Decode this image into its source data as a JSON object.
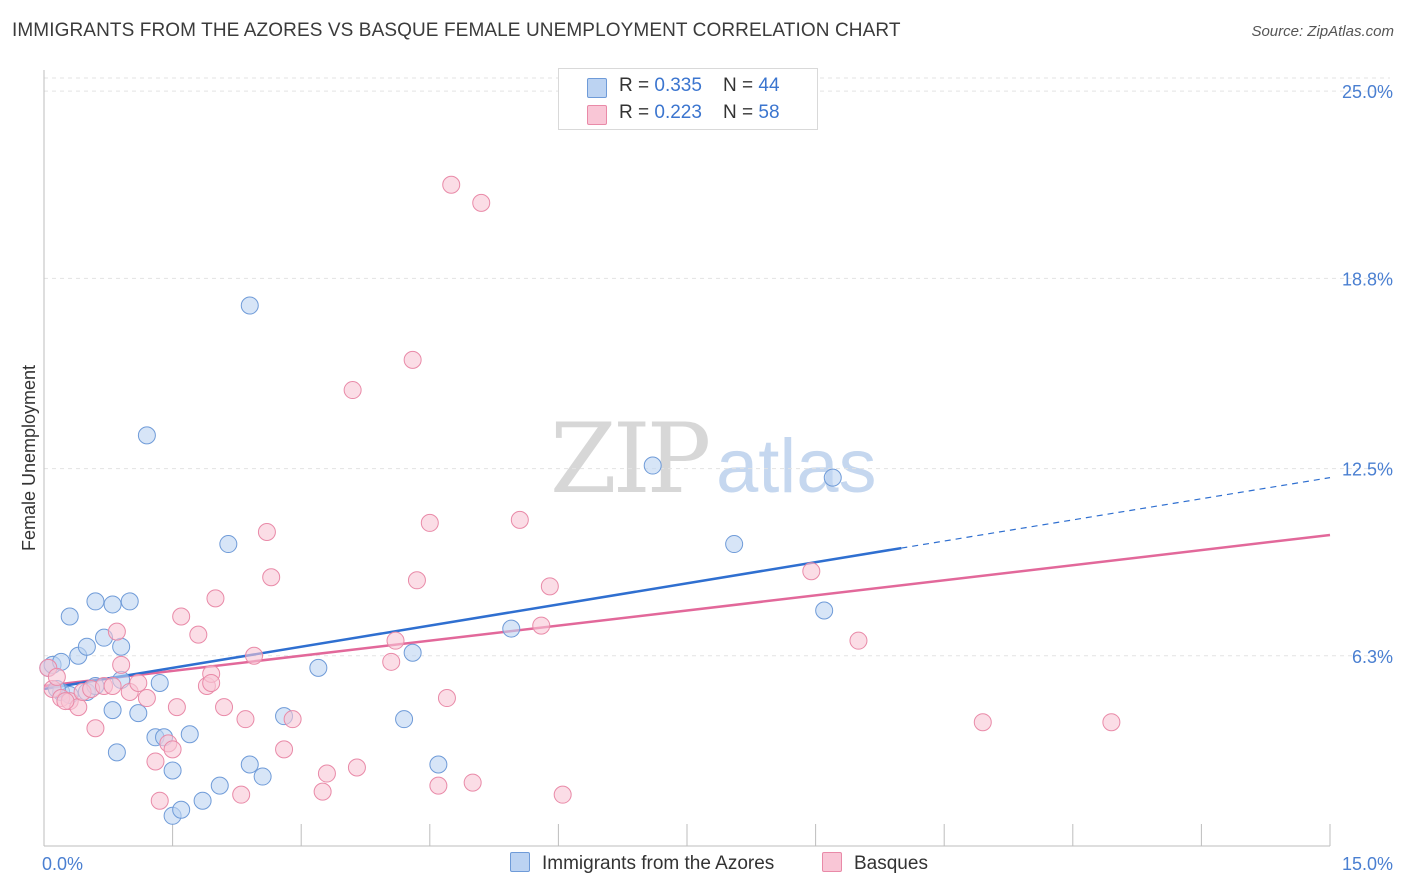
{
  "title": "IMMIGRANTS FROM THE AZORES VS BASQUE FEMALE UNEMPLOYMENT CORRELATION CHART",
  "source": "Source: ZipAtlas.com",
  "watermark": {
    "zip": "ZIP",
    "atlas": "atlas"
  },
  "colors": {
    "blue_fill": "#bcd3f2",
    "blue_stroke": "#6f9bd8",
    "blue_line": "#2f6fd0",
    "pink_fill": "#f9c6d6",
    "pink_stroke": "#e98aa8",
    "pink_line": "#e2689a",
    "grid": "#e3e3e3",
    "axis_text": "#4a7fd1"
  },
  "legend": {
    "row1": {
      "r_label": "R = ",
      "r_value": "0.335",
      "n_label": "N = ",
      "n_value": "44"
    },
    "row2": {
      "r_label": "R = ",
      "r_value": "0.223",
      "n_label": "N = ",
      "n_value": "58"
    }
  },
  "chart_data": {
    "type": "scatter",
    "xlabel": "",
    "ylabel": "Female Unemployment",
    "xlim": [
      0,
      15
    ],
    "ylim": [
      0,
      25.7
    ],
    "x_tick_labels": [
      "0.0%",
      "15.0%"
    ],
    "y_ticks": [
      6.3,
      12.5,
      18.8,
      25.0
    ],
    "y_tick_labels": [
      "6.3%",
      "12.5%",
      "18.8%",
      "25.0%"
    ],
    "legend_position": "top-center",
    "series": [
      {
        "name": "Immigrants from the Azores",
        "r": 0.335,
        "n": 44,
        "trend": {
          "x0": 0,
          "y0": 5.2,
          "x_solid_end": 10.0,
          "x1": 15,
          "y1": 12.2
        },
        "points": [
          [
            0.05,
            5.9
          ],
          [
            0.1,
            6.0
          ],
          [
            0.2,
            6.1
          ],
          [
            0.2,
            5.1
          ],
          [
            0.3,
            5.0
          ],
          [
            0.3,
            7.6
          ],
          [
            0.4,
            6.3
          ],
          [
            0.5,
            6.6
          ],
          [
            0.5,
            5.1
          ],
          [
            0.6,
            5.3
          ],
          [
            0.6,
            8.1
          ],
          [
            0.7,
            6.9
          ],
          [
            0.8,
            8.0
          ],
          [
            0.8,
            4.5
          ],
          [
            0.85,
            3.1
          ],
          [
            0.9,
            6.6
          ],
          [
            1.0,
            8.1
          ],
          [
            1.1,
            4.4
          ],
          [
            1.2,
            13.6
          ],
          [
            1.3,
            3.6
          ],
          [
            1.35,
            5.4
          ],
          [
            1.4,
            3.6
          ],
          [
            1.5,
            2.5
          ],
          [
            1.5,
            1.0
          ],
          [
            1.6,
            1.2
          ],
          [
            1.7,
            3.7
          ],
          [
            1.85,
            1.5
          ],
          [
            2.05,
            2.0
          ],
          [
            2.15,
            10.0
          ],
          [
            2.4,
            17.9
          ],
          [
            2.4,
            2.7
          ],
          [
            2.55,
            2.3
          ],
          [
            2.8,
            4.3
          ],
          [
            3.2,
            5.9
          ],
          [
            4.2,
            4.2
          ],
          [
            4.3,
            6.4
          ],
          [
            4.6,
            2.7
          ],
          [
            5.45,
            7.2
          ],
          [
            7.1,
            12.6
          ],
          [
            8.05,
            10.0
          ],
          [
            9.1,
            7.8
          ],
          [
            9.2,
            12.2
          ],
          [
            0.15,
            5.2
          ],
          [
            0.9,
            5.5
          ]
        ]
      },
      {
        "name": "Basques",
        "r": 0.223,
        "n": 58,
        "trend": {
          "x0": 0,
          "y0": 5.3,
          "x1": 15,
          "y1": 10.3
        },
        "points": [
          [
            0.05,
            5.9
          ],
          [
            0.1,
            5.2
          ],
          [
            0.15,
            5.6
          ],
          [
            0.2,
            4.9
          ],
          [
            0.3,
            4.8
          ],
          [
            0.4,
            4.6
          ],
          [
            0.45,
            5.1
          ],
          [
            0.55,
            5.2
          ],
          [
            0.6,
            3.9
          ],
          [
            0.7,
            5.3
          ],
          [
            0.8,
            5.3
          ],
          [
            0.85,
            7.1
          ],
          [
            0.9,
            6.0
          ],
          [
            1.0,
            5.1
          ],
          [
            1.1,
            5.4
          ],
          [
            1.2,
            4.9
          ],
          [
            1.3,
            2.8
          ],
          [
            1.35,
            1.5
          ],
          [
            1.45,
            3.4
          ],
          [
            1.5,
            3.2
          ],
          [
            1.55,
            4.6
          ],
          [
            1.6,
            7.6
          ],
          [
            1.8,
            7.0
          ],
          [
            1.9,
            5.3
          ],
          [
            1.95,
            5.7
          ],
          [
            2.0,
            8.2
          ],
          [
            2.1,
            4.6
          ],
          [
            2.3,
            1.7
          ],
          [
            2.35,
            4.2
          ],
          [
            2.45,
            6.3
          ],
          [
            2.6,
            10.4
          ],
          [
            2.65,
            8.9
          ],
          [
            2.8,
            3.2
          ],
          [
            2.9,
            4.2
          ],
          [
            3.25,
            1.8
          ],
          [
            3.3,
            2.4
          ],
          [
            3.6,
            15.1
          ],
          [
            3.65,
            2.6
          ],
          [
            4.05,
            6.1
          ],
          [
            4.1,
            6.8
          ],
          [
            4.3,
            16.1
          ],
          [
            4.35,
            8.8
          ],
          [
            4.5,
            10.7
          ],
          [
            4.6,
            2.0
          ],
          [
            4.7,
            4.9
          ],
          [
            4.75,
            21.9
          ],
          [
            5.0,
            2.1
          ],
          [
            5.1,
            21.3
          ],
          [
            5.55,
            10.8
          ],
          [
            5.8,
            7.3
          ],
          [
            5.9,
            8.6
          ],
          [
            6.05,
            1.7
          ],
          [
            8.95,
            9.1
          ],
          [
            9.5,
            6.8
          ],
          [
            10.95,
            4.1
          ],
          [
            12.45,
            4.1
          ],
          [
            0.25,
            4.8
          ],
          [
            1.95,
            5.4
          ]
        ]
      }
    ]
  }
}
